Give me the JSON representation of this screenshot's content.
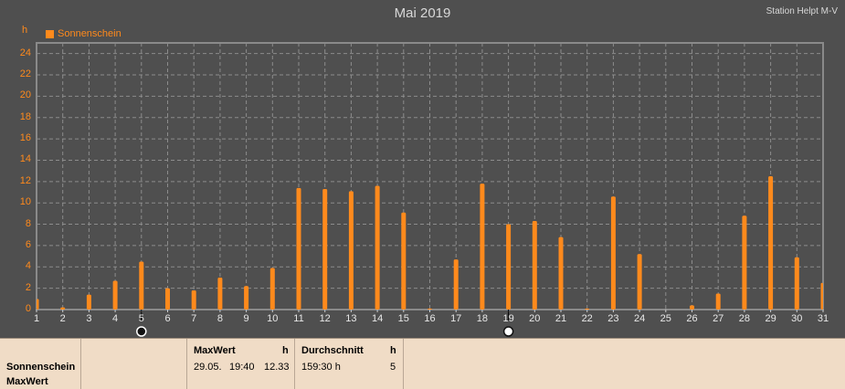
{
  "header": {
    "title": "Mai 2019",
    "station": "Station Helpt M-V",
    "unit": "h"
  },
  "colors": {
    "background": "#4f4f4f",
    "plot_border": "#8a8a8a",
    "grid": "#8c8c8c",
    "series": "#ff8a1c",
    "panel": "#f0dcc6"
  },
  "chart_data": {
    "type": "bar",
    "title": "Mai 2019",
    "ylabel": "h",
    "ylim": [
      0,
      25
    ],
    "yticks": [
      0,
      2,
      4,
      6,
      8,
      10,
      12,
      14,
      16,
      18,
      20,
      22,
      24
    ],
    "grid": true,
    "legend_position": "top-left",
    "categories": [
      "1",
      "2",
      "3",
      "4",
      "5",
      "6",
      "7",
      "8",
      "9",
      "10",
      "11",
      "12",
      "13",
      "14",
      "15",
      "16",
      "17",
      "18",
      "19",
      "20",
      "21",
      "22",
      "23",
      "24",
      "25",
      "26",
      "27",
      "28",
      "29",
      "30",
      "31"
    ],
    "series": [
      {
        "name": "Sonnenschein",
        "color": "#ff8a1c",
        "values": [
          1.0,
          0.2,
          1.4,
          2.7,
          4.5,
          2.0,
          1.8,
          3.0,
          2.2,
          3.9,
          11.4,
          11.3,
          11.1,
          11.6,
          9.1,
          0.1,
          4.7,
          11.8,
          8.0,
          8.3,
          6.8,
          0.1,
          10.6,
          5.2,
          0.0,
          0.4,
          1.5,
          8.8,
          12.5,
          4.9,
          2.5
        ]
      }
    ],
    "markers": [
      {
        "day": 5,
        "symbol": "new-moon-icon"
      },
      {
        "day": 19,
        "symbol": "full-moon-icon"
      }
    ]
  },
  "stats": {
    "row1": "Sonnenschein",
    "row2": "MaxWert",
    "max_header": "MaxWert",
    "max_unit": "h",
    "max_date": "29.05.",
    "max_time": "19:40",
    "max_value": "12.33",
    "avg_header": "Durchschnitt",
    "avg_unit": "h",
    "avg_value": "159:30 h",
    "avg_count": "5"
  }
}
